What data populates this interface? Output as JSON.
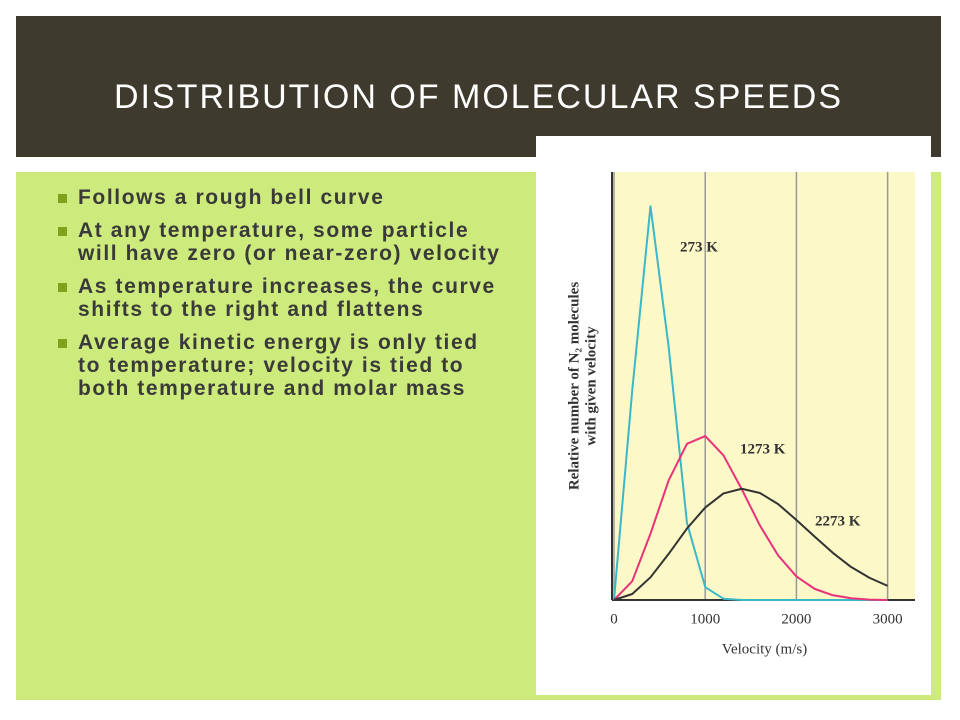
{
  "title": "DISTRIBUTION OF MOLECULAR SPEEDS",
  "bullets": [
    "Follows a rough bell curve",
    "At any temperature, some particle will have zero (or near-zero) velocity",
    "As temperature increases, the curve shifts to the right and flattens",
    "Average kinetic energy is only tied to temperature; velocity is tied to both temperature and molar mass"
  ],
  "chart_data": {
    "type": "line",
    "x_label": "Velocity (m/s)",
    "y_label": [
      "Relative number of N₂ molecules",
      "with given velocity"
    ],
    "x": [
      0,
      200,
      400,
      600,
      800,
      1000,
      1200,
      1400,
      1600,
      1800,
      2000,
      2200,
      2400,
      2600,
      2800,
      3000
    ],
    "series": [
      {
        "name": "273 K",
        "color": "#3ab8c8",
        "values": [
          0,
          49,
          92,
          59,
          18,
          3,
          0.3,
          0,
          0,
          0,
          0,
          0,
          0,
          0,
          0,
          0
        ]
      },
      {
        "name": "1273 K",
        "color": "#e8327a",
        "values": [
          0,
          4.4,
          15.5,
          28,
          36.5,
          38.3,
          33.8,
          25.9,
          17.4,
          10.4,
          5.5,
          2.6,
          1.1,
          0.4,
          0.1,
          0
        ]
      },
      {
        "name": "2273 K",
        "color": "#333333",
        "values": [
          0,
          1.4,
          5.3,
          10.8,
          16.7,
          21.6,
          24.9,
          26,
          25,
          22.4,
          18.7,
          14.8,
          11,
          7.7,
          5.2,
          3.3
        ]
      }
    ],
    "xlim": [
      0,
      3300
    ],
    "xticks": [
      0,
      1000,
      2000,
      3000
    ],
    "ylim": [
      0,
      100
    ],
    "grid": true
  }
}
